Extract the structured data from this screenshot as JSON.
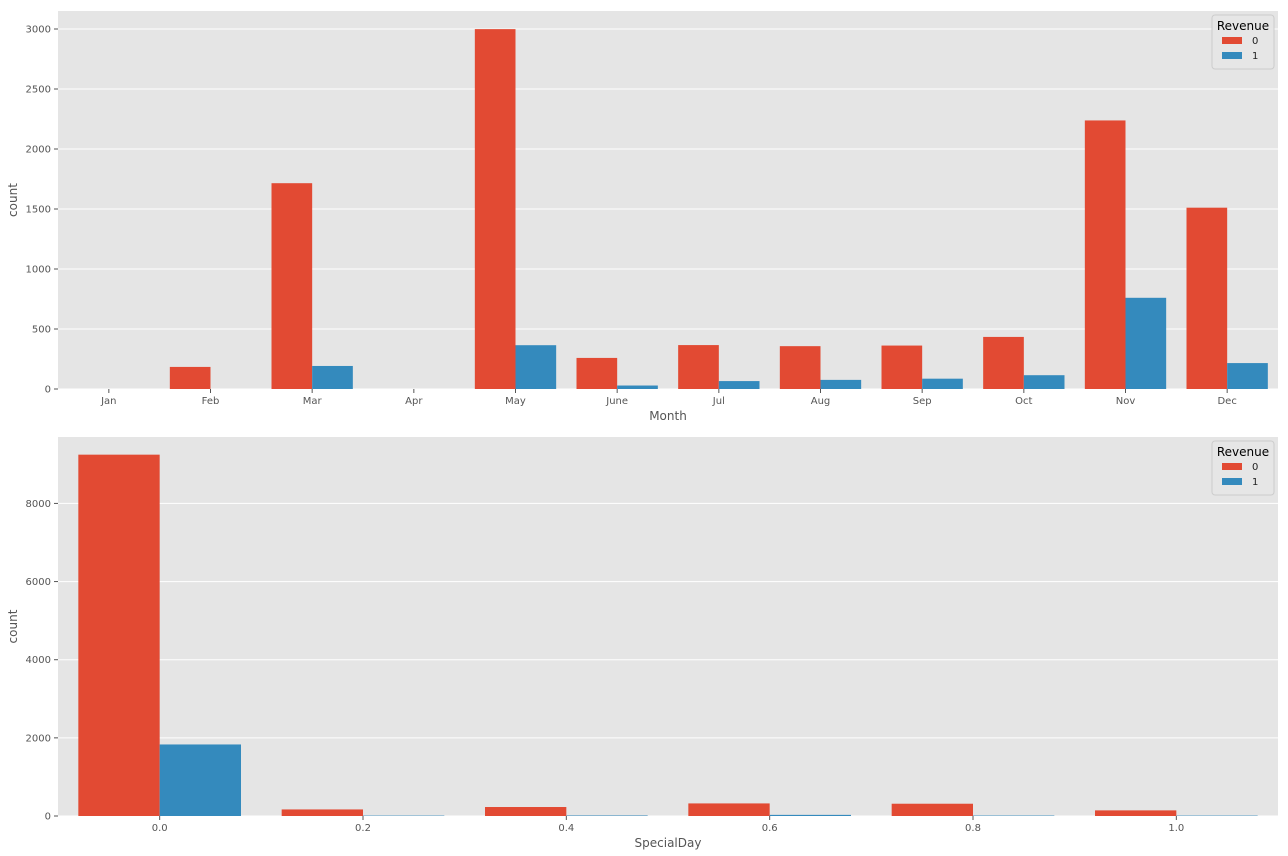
{
  "colors": {
    "series0": "#E24A33",
    "series1": "#348ABD",
    "panel": "#E5E5E5",
    "grid": "#FFFFFF"
  },
  "chart_data": [
    {
      "type": "bar",
      "xlabel": "Month",
      "ylabel": "count",
      "ylim": [
        0,
        3150
      ],
      "yticks": [
        0,
        500,
        1000,
        1500,
        2000,
        2500,
        3000
      ],
      "ytick_labels": [
        "0",
        "500",
        "1000",
        "1500",
        "2000",
        "2500",
        "3000"
      ],
      "categories": [
        "Jan",
        "Feb",
        "Mar",
        "Apr",
        "May",
        "June",
        "Jul",
        "Aug",
        "Sep",
        "Oct",
        "Nov",
        "Dec"
      ],
      "grid": true,
      "legend": {
        "title": "Revenue",
        "placement": "top-right"
      },
      "series": [
        {
          "name": "0",
          "values": [
            0,
            184,
            1715,
            0,
            2999,
            259,
            366,
            357,
            362,
            434,
            2238,
            1511
          ]
        },
        {
          "name": "1",
          "values": [
            0,
            0,
            192,
            0,
            365,
            29,
            66,
            76,
            86,
            115,
            760,
            216
          ]
        }
      ]
    },
    {
      "type": "bar",
      "xlabel": "SpecialDay",
      "ylabel": "count",
      "ylim": [
        0,
        9700
      ],
      "yticks": [
        0,
        2000,
        4000,
        6000,
        8000
      ],
      "ytick_labels": [
        "0",
        "2000",
        "4000",
        "6000",
        "8000"
      ],
      "categories": [
        "0.0",
        "0.2",
        "0.4",
        "0.6",
        "0.8",
        "1.0"
      ],
      "grid": true,
      "legend": {
        "title": "Revenue",
        "placement": "top-right"
      },
      "series": [
        {
          "name": "0",
          "values": [
            9248,
            168,
            230,
            322,
            314,
            144
          ]
        },
        {
          "name": "1",
          "values": [
            1831,
            10,
            13,
            29,
            11,
            10
          ]
        }
      ]
    }
  ]
}
